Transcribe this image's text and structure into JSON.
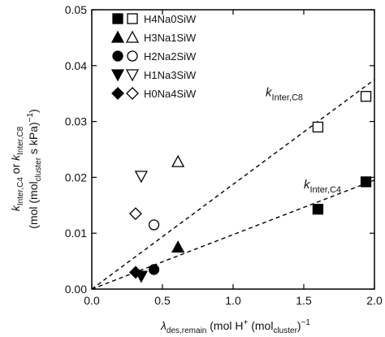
{
  "chart_data": {
    "type": "scatter",
    "xlim": [
      0,
      2.0
    ],
    "ylim": [
      0,
      0.05
    ],
    "x_ticks": [
      "0.0",
      "0.5",
      "1.0",
      "1.5",
      "2.0"
    ],
    "y_ticks": [
      "0.00",
      "0.01",
      "0.02",
      "0.03",
      "0.04",
      "0.05"
    ],
    "y_tick_values": [
      0,
      0.01,
      0.02,
      0.03,
      0.04,
      0.05
    ],
    "x_tick_values": [
      0,
      0.5,
      1.0,
      1.5,
      2.0
    ],
    "xlabel": {
      "lambda": "λ",
      "lambda_sub": "des,remain",
      "unit_open": " (mol H",
      "unit_sup": "+",
      "unit_mid": " (mol",
      "unit_sub": "cluster",
      "unit_close": ")",
      "unit_exp": "−1",
      "unit_end": ""
    },
    "ylabel_line1": {
      "k1": "k",
      "k1_sub": "Inter,C4",
      "or": " or ",
      "k2": "k",
      "k2_sub": "Inter,C8"
    },
    "ylabel_line2": {
      "open": "(mol (mol",
      "sub": "cluster",
      "mid": " s kPa)",
      "exp": "−1",
      "end": ")"
    },
    "legend": [
      {
        "label": "H4Na0SiW",
        "marker": "square"
      },
      {
        "label": "H3Na1SiW",
        "marker": "triangle-up"
      },
      {
        "label": "H2Na2SiW",
        "marker": "circle"
      },
      {
        "label": "H1Na3SiW",
        "marker": "triangle-down"
      },
      {
        "label": "H0Na4SiW",
        "marker": "diamond"
      }
    ],
    "series": [
      {
        "label": "H4Na0SiW",
        "marker": "square",
        "C4_filled": {
          "x": 1.6,
          "y": 0.0143
        },
        "C8_open": {
          "x": 1.6,
          "y": 0.029
        }
      },
      {
        "label": "H3Na1SiW",
        "marker": "triangle-up",
        "C4_filled": {
          "x": 0.61,
          "y": 0.0075
        },
        "C8_open": {
          "x": 0.61,
          "y": 0.0228
        }
      },
      {
        "label": "H2Na2SiW",
        "marker": "circle",
        "C4_filled": {
          "x": 0.44,
          "y": 0.0035
        },
        "C8_open": {
          "x": 0.44,
          "y": 0.0115
        }
      },
      {
        "label": "H1Na3SiW",
        "marker": "triangle-down",
        "C4_filled": {
          "x": 0.35,
          "y": 0.0023
        },
        "C8_open": {
          "x": 0.35,
          "y": 0.0202
        }
      },
      {
        "label": "H0Na4SiW",
        "marker": "diamond",
        "C4_filled": {
          "x": 0.31,
          "y": 0.003
        },
        "C8_open": {
          "x": 0.31,
          "y": 0.0135
        }
      }
    ],
    "extra_points": [
      {
        "label": "H4Na0SiW",
        "marker": "square",
        "filled": true,
        "x": 1.94,
        "y": 0.0192
      },
      {
        "label": "H4Na0SiW",
        "marker": "square",
        "filled": false,
        "x": 1.94,
        "y": 0.0345
      }
    ],
    "fit_lines": [
      {
        "name": "C8",
        "style": "dashed",
        "x": [
          0,
          2.0
        ],
        "y": [
          0,
          0.0375
        ]
      },
      {
        "name": "C4",
        "style": "dashed",
        "x": [
          0,
          2.0
        ],
        "y": [
          0,
          0.0195
        ]
      }
    ],
    "annotations": [
      {
        "k": "k",
        "sub": "Inter,C8",
        "at": {
          "x": 1.23,
          "y": 0.0345
        }
      },
      {
        "k": "k",
        "sub": "Inter,C4",
        "at": {
          "x": 1.5,
          "y": 0.018
        }
      }
    ],
    "grid": false
  }
}
